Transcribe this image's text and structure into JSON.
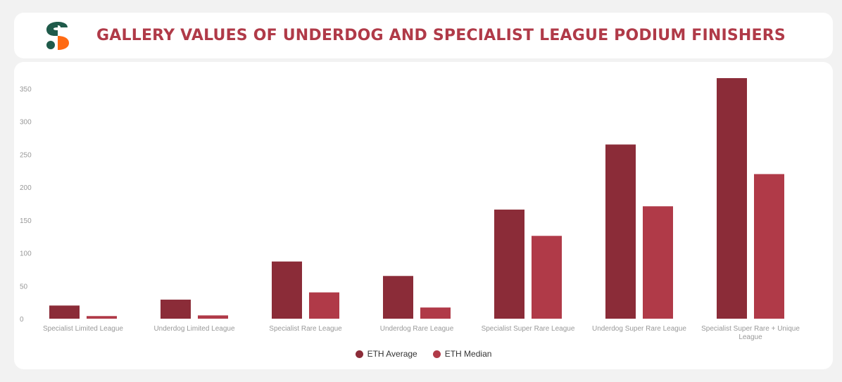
{
  "header": {
    "title": "GALLERY VALUES OF UNDERDOG AND SPECIALIST LEAGUE PODIUM FINISHERS",
    "logo_icon": "sorare-s-logo"
  },
  "colors": {
    "avg": "#8b2c38",
    "median": "#b03a48",
    "title": "#b03a48",
    "logo_top": "#1f5a4a",
    "logo_bottom": "#ff6a13"
  },
  "chart_data": {
    "type": "bar",
    "categories": [
      "Specialist Limited League",
      "Underdog Limited League",
      "Specialist Rare League",
      "Underdog Rare League",
      "Specialist Super Rare League",
      "Underdog Super Rare League",
      "Specialist Super Rare + Unique League"
    ],
    "series": [
      {
        "name": "ETH Average",
        "values": [
          20,
          29,
          87,
          65,
          166,
          265,
          366
        ]
      },
      {
        "name": "ETH Median",
        "values": [
          4,
          5,
          40,
          17,
          126,
          171,
          220
        ]
      }
    ],
    "ylim": [
      0,
      350
    ],
    "yticks": [
      0,
      50,
      100,
      150,
      200,
      250,
      300,
      350
    ],
    "legend_position": "bottom",
    "grid": false
  }
}
